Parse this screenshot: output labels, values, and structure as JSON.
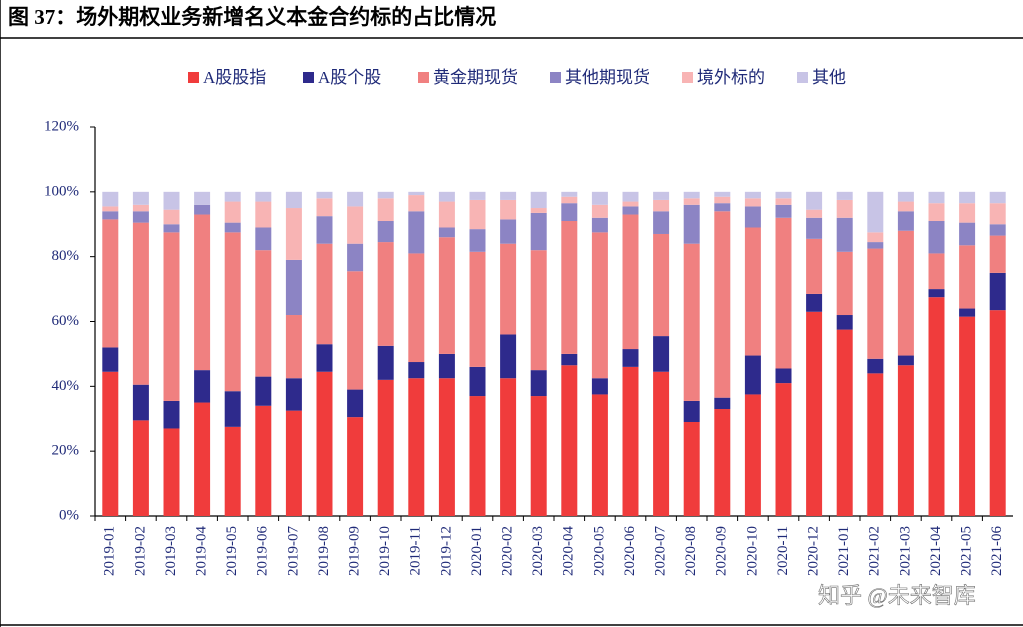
{
  "chart_data": {
    "type": "stacked_bar",
    "title": "图 37：场外期权业务新增名义本金合约标的占比情况",
    "watermark": "知乎 @未来智库",
    "categories": [
      "2019-01",
      "2019-02",
      "2019-03",
      "2019-04",
      "2019-05",
      "2019-06",
      "2019-07",
      "2019-08",
      "2019-09",
      "2019-10",
      "2019-11",
      "2019-12",
      "2020-01",
      "2020-02",
      "2020-03",
      "2020-04",
      "2020-05",
      "2020-06",
      "2020-07",
      "2020-08",
      "2020-09",
      "2020-10",
      "2020-11",
      "2020-12",
      "2021-01",
      "2021-02",
      "2021-03",
      "2021-04",
      "2021-05",
      "2021-06"
    ],
    "series": [
      {
        "name": "A股股指",
        "color": "#f03c3c",
        "values": [
          44.5,
          29.5,
          27,
          35,
          27.5,
          34,
          32.5,
          44.5,
          30.5,
          42,
          42.5,
          42.5,
          37,
          42.5,
          37,
          46.5,
          37.5,
          46,
          44.5,
          29,
          33,
          37.5,
          41,
          63,
          57.5,
          44,
          46.5,
          67.5,
          61.5,
          63.5
        ]
      },
      {
        "name": "A股个股",
        "color": "#2e2a8c",
        "values": [
          7.5,
          11,
          8.5,
          10,
          11,
          9,
          10,
          8.5,
          8.5,
          10.5,
          5,
          7.5,
          9,
          13.5,
          8,
          3.5,
          5,
          5.5,
          11,
          6.5,
          3.5,
          12,
          4.5,
          5.5,
          4.5,
          4.5,
          3,
          2.5,
          2.5,
          11.5
        ]
      },
      {
        "name": "黄金期现货",
        "color": "#f08080",
        "values": [
          39.5,
          50,
          52,
          48,
          49,
          39,
          19.5,
          31,
          36.5,
          32,
          33.5,
          36,
          35.5,
          28,
          37,
          41,
          45,
          41.5,
          31.5,
          48.5,
          57.5,
          39.5,
          46.5,
          17,
          19.5,
          34,
          38.5,
          11,
          19.5,
          11.5
        ]
      },
      {
        "name": "其他期现货",
        "color": "#8c84c4",
        "values": [
          2.5,
          3.5,
          2.5,
          3,
          3,
          7,
          17,
          8.5,
          8.5,
          6.5,
          13,
          3,
          7,
          7.5,
          11.5,
          5.5,
          4.5,
          2.5,
          7,
          12,
          2.5,
          6.5,
          4,
          6.5,
          10.5,
          2,
          6,
          10,
          7,
          3.5
        ]
      },
      {
        "name": "境外标的",
        "color": "#f8b4b4",
        "values": [
          1.5,
          2,
          4.5,
          0,
          6.5,
          8,
          16,
          5.5,
          11.5,
          7,
          5,
          8,
          9,
          6,
          1.5,
          2,
          4,
          1.5,
          3.5,
          2,
          2,
          2.5,
          2,
          2.5,
          5.5,
          3,
          3,
          5.5,
          6,
          6.5
        ]
      },
      {
        "name": "其他",
        "color": "#c8c4e6",
        "values": [
          4.5,
          4,
          5.5,
          4,
          3,
          3,
          5,
          2,
          4.5,
          2,
          1,
          3,
          2.5,
          2.5,
          5,
          1.5,
          4,
          3,
          2.5,
          2,
          1.5,
          2,
          2,
          5.5,
          2.5,
          12.5,
          3,
          3.5,
          3.5,
          3.5
        ]
      }
    ],
    "ylim": [
      0,
      120
    ],
    "yticks": [
      {
        "value": 0,
        "label": "0%"
      },
      {
        "value": 20,
        "label": "20%"
      },
      {
        "value": 40,
        "label": "40%"
      },
      {
        "value": 60,
        "label": "60%"
      },
      {
        "value": 80,
        "label": "80%"
      },
      {
        "value": 100,
        "label": "100%"
      },
      {
        "value": 120,
        "label": "120%"
      }
    ]
  }
}
